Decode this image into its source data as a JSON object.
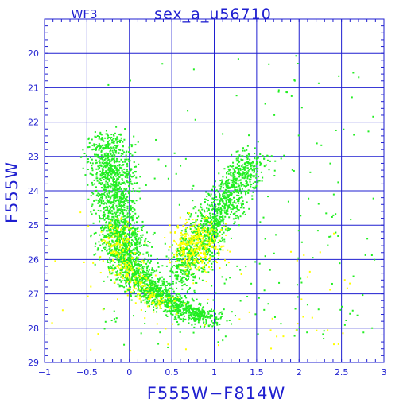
{
  "chart_data": {
    "type": "scatter",
    "panel_label": "WF3",
    "title": "sex_a_u56710",
    "xlabel": "F555W−F814W",
    "ylabel": "F555W",
    "xlim": [
      -1,
      3
    ],
    "ylim": [
      29,
      19
    ],
    "y_inverted": true,
    "grid": true,
    "x_ticks": [
      -1,
      -0.5,
      0,
      0.5,
      1,
      1.5,
      2,
      2.5,
      3
    ],
    "x_tick_labels": [
      "−1",
      "−0.5",
      "0",
      "0.5",
      "1",
      "1.5",
      "2",
      "2.5",
      "3"
    ],
    "y_ticks": [
      20,
      21,
      22,
      23,
      24,
      25,
      26,
      27,
      28,
      29
    ],
    "y_tick_labels": [
      "20",
      "21",
      "22",
      "23",
      "24",
      "25",
      "26",
      "27",
      "28",
      "29"
    ],
    "colors": {
      "axis": "#1f1fd0",
      "grid": "#1f1fd0",
      "green": "#22ee22",
      "yellow": "#ffff00"
    },
    "series": [
      {
        "color": "green",
        "components": [
          {
            "shape": "rgb_main_sequence",
            "n": 2600,
            "path": [
              [
                0.95,
                27.8
              ],
              [
                0.7,
                27.5
              ],
              [
                0.45,
                27.2
              ],
              [
                0.25,
                26.9
              ],
              [
                0.1,
                26.6
              ],
              [
                0.0,
                26.2
              ],
              [
                -0.05,
                25.8
              ],
              [
                -0.1,
                25.4
              ],
              [
                -0.12,
                25.0
              ],
              [
                -0.15,
                24.5
              ],
              [
                -0.18,
                24.0
              ],
              [
                -0.2,
                23.5
              ],
              [
                -0.22,
                23.0
              ],
              [
                -0.25,
                22.4
              ]
            ],
            "spread_x": 0.13,
            "spread_y": 0.12
          },
          {
            "shape": "red_clump_rgb",
            "n": 1300,
            "path": [
              [
                0.6,
                26.6
              ],
              [
                0.7,
                26.0
              ],
              [
                0.8,
                25.6
              ],
              [
                0.9,
                25.2
              ],
              [
                1.0,
                24.8
              ],
              [
                1.1,
                24.4
              ],
              [
                1.2,
                24.0
              ],
              [
                1.35,
                23.5
              ],
              [
                1.45,
                23.1
              ]
            ],
            "spread_x": 0.12,
            "spread_y": 0.22
          },
          {
            "shape": "scattered",
            "n": 200,
            "x_range": [
              -0.3,
              2.9
            ],
            "y_range": [
              19.6,
              28.6
            ]
          }
        ]
      },
      {
        "color": "yellow",
        "components": [
          {
            "shape": "blue_plume",
            "n": 260,
            "path": [
              [
                -0.15,
                25.0
              ],
              [
                -0.1,
                25.8
              ],
              [
                0.0,
                26.4
              ],
              [
                0.2,
                27.0
              ],
              [
                0.5,
                27.4
              ]
            ],
            "spread_x": 0.1,
            "spread_y": 0.15
          },
          {
            "shape": "red_clump",
            "n": 320,
            "cx": 0.8,
            "cy": 25.6,
            "sx": 0.15,
            "sy": 0.35
          },
          {
            "shape": "scattered",
            "n": 70,
            "x_range": [
              -1.0,
              2.6
            ],
            "y_range": [
              24.5,
              28.7
            ]
          }
        ]
      }
    ]
  }
}
